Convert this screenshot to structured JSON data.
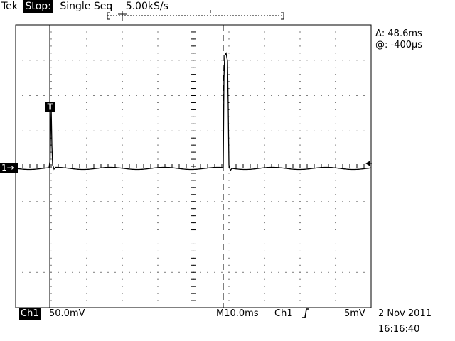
{
  "header": {
    "brand": "Tek",
    "run_state": "Stop:",
    "acquire_mode": "Single Seq",
    "sample_rate": "5.00kS/s"
  },
  "cursors": {
    "delta": "Δ: 48.6ms",
    "at": "@: -400μs"
  },
  "footer": {
    "channel": "Ch1",
    "volts_per_div": "50.0mV",
    "timebase": "M10.0ms",
    "trigger_source": "Ch1",
    "trigger_slope_icon": "rising-edge-icon",
    "trigger_level": "5mV",
    "date": "2 Nov 2011",
    "time": "16:16:40"
  },
  "markers": {
    "channel_marker": "1→",
    "trigger_marker": "T"
  },
  "colors": {
    "trace": "#000000",
    "grid": "#000000",
    "background": "#ffffff"
  }
}
